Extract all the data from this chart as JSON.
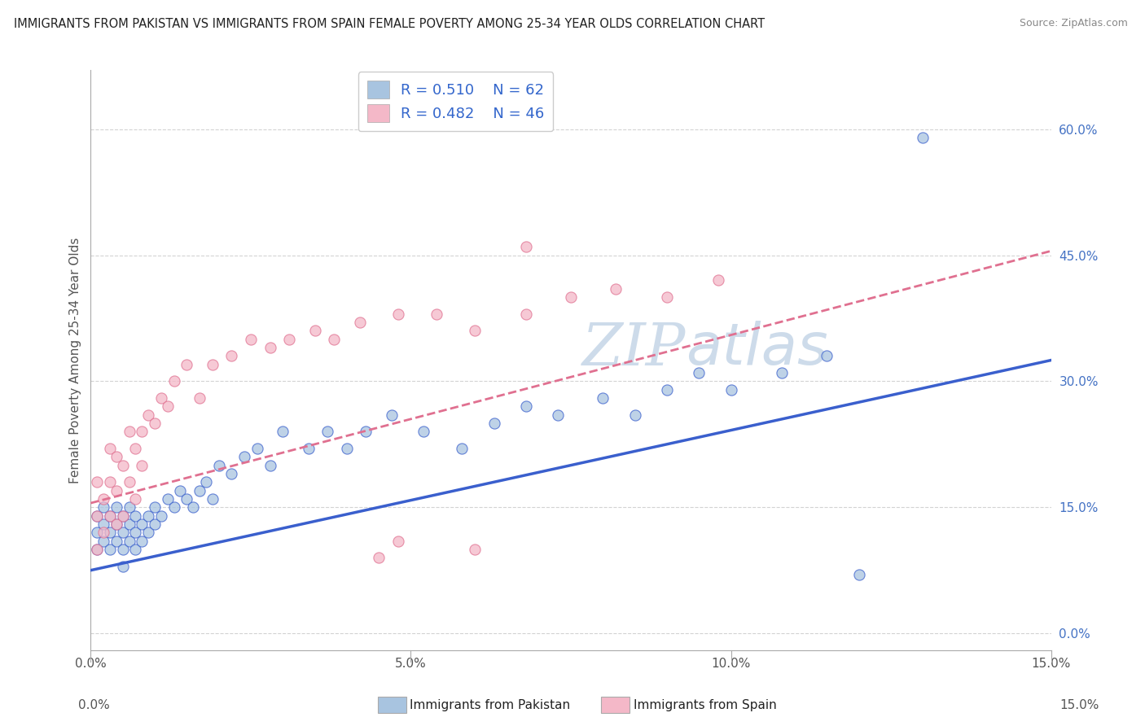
{
  "title": "IMMIGRANTS FROM PAKISTAN VS IMMIGRANTS FROM SPAIN FEMALE POVERTY AMONG 25-34 YEAR OLDS CORRELATION CHART",
  "source": "Source: ZipAtlas.com",
  "ylabel": "Female Poverty Among 25-34 Year Olds",
  "xmin": 0.0,
  "xmax": 0.15,
  "ymin": -0.02,
  "ymax": 0.67,
  "ytick_vals": [
    0.0,
    0.15,
    0.3,
    0.45,
    0.6
  ],
  "xtick_vals": [
    0.0,
    0.05,
    0.1,
    0.15
  ],
  "color_pakistan": "#a8c4e0",
  "color_spain": "#f4b8c8",
  "color_line_pakistan": "#3a5fcd",
  "color_line_spain": "#e07090",
  "watermark_color": "#c8d8e8",
  "pakistan_x": [
    0.001,
    0.001,
    0.001,
    0.002,
    0.002,
    0.002,
    0.003,
    0.003,
    0.003,
    0.004,
    0.004,
    0.004,
    0.005,
    0.005,
    0.005,
    0.005,
    0.006,
    0.006,
    0.006,
    0.007,
    0.007,
    0.007,
    0.008,
    0.008,
    0.009,
    0.009,
    0.01,
    0.01,
    0.011,
    0.012,
    0.013,
    0.014,
    0.015,
    0.016,
    0.017,
    0.018,
    0.019,
    0.02,
    0.022,
    0.024,
    0.026,
    0.028,
    0.03,
    0.034,
    0.037,
    0.04,
    0.043,
    0.047,
    0.052,
    0.058,
    0.063,
    0.068,
    0.073,
    0.08,
    0.085,
    0.09,
    0.095,
    0.1,
    0.108,
    0.115,
    0.12,
    0.13
  ],
  "pakistan_y": [
    0.12,
    0.14,
    0.1,
    0.13,
    0.11,
    0.15,
    0.12,
    0.14,
    0.1,
    0.13,
    0.11,
    0.15,
    0.12,
    0.14,
    0.1,
    0.08,
    0.13,
    0.11,
    0.15,
    0.14,
    0.12,
    0.1,
    0.13,
    0.11,
    0.14,
    0.12,
    0.15,
    0.13,
    0.14,
    0.16,
    0.15,
    0.17,
    0.16,
    0.15,
    0.17,
    0.18,
    0.16,
    0.2,
    0.19,
    0.21,
    0.22,
    0.2,
    0.24,
    0.22,
    0.24,
    0.22,
    0.24,
    0.26,
    0.24,
    0.22,
    0.25,
    0.27,
    0.26,
    0.28,
    0.26,
    0.29,
    0.31,
    0.29,
    0.31,
    0.33,
    0.07,
    0.59
  ],
  "spain_x": [
    0.001,
    0.001,
    0.001,
    0.002,
    0.002,
    0.003,
    0.003,
    0.003,
    0.004,
    0.004,
    0.004,
    0.005,
    0.005,
    0.006,
    0.006,
    0.007,
    0.007,
    0.008,
    0.008,
    0.009,
    0.01,
    0.011,
    0.012,
    0.013,
    0.015,
    0.017,
    0.019,
    0.022,
    0.025,
    0.028,
    0.031,
    0.035,
    0.038,
    0.042,
    0.048,
    0.054,
    0.06,
    0.068,
    0.075,
    0.082,
    0.09,
    0.098,
    0.045,
    0.048,
    0.06,
    0.068
  ],
  "spain_y": [
    0.1,
    0.14,
    0.18,
    0.12,
    0.16,
    0.14,
    0.18,
    0.22,
    0.13,
    0.17,
    0.21,
    0.14,
    0.2,
    0.18,
    0.24,
    0.16,
    0.22,
    0.2,
    0.24,
    0.26,
    0.25,
    0.28,
    0.27,
    0.3,
    0.32,
    0.28,
    0.32,
    0.33,
    0.35,
    0.34,
    0.35,
    0.36,
    0.35,
    0.37,
    0.38,
    0.38,
    0.36,
    0.38,
    0.4,
    0.41,
    0.4,
    0.42,
    0.09,
    0.11,
    0.1,
    0.46
  ],
  "pak_trendline_x0": 0.0,
  "pak_trendline_y0": 0.075,
  "pak_trendline_x1": 0.15,
  "pak_trendline_y1": 0.325,
  "spa_trendline_x0": 0.0,
  "spa_trendline_y0": 0.155,
  "spa_trendline_x1": 0.15,
  "spa_trendline_y1": 0.455
}
